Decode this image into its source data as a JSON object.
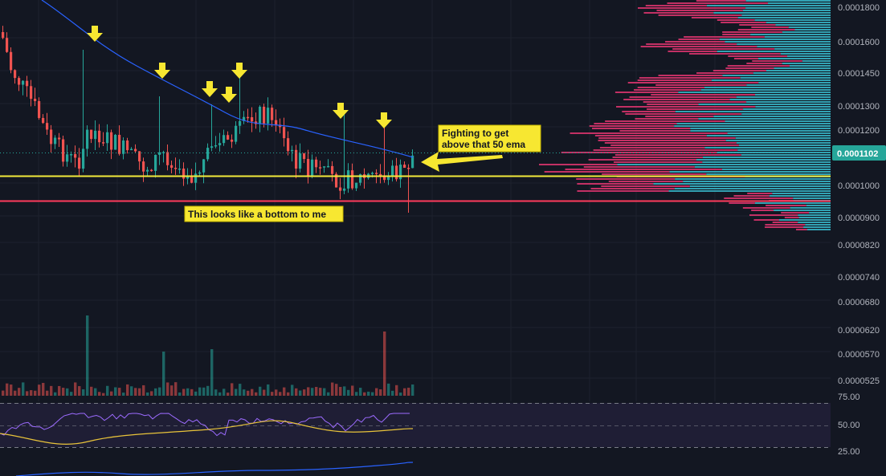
{
  "colors": {
    "background": "#131722",
    "up": "#26a69a",
    "down": "#ef5350",
    "ema": "#2962ff",
    "support": "#f2ea3b",
    "bottom": "#ff3b5c",
    "annotation_fill": "#f7e731",
    "annotation_border": "#c9b800",
    "arrow": "#f7e731",
    "rsi": "#9c6bff",
    "rsi_ma": "#e8c33a",
    "price_badge": "#26a69a",
    "vp_up": "#36b3c4",
    "vp_down": "#d6336c"
  },
  "price_axis": {
    "ticks": [
      "0.0001800",
      "0.0001600",
      "0.0001450",
      "0.0001300",
      "0.0001200",
      "0.0001000",
      "0.0000900",
      "0.0000820",
      "0.0000740",
      "0.0000680",
      "0.0000620",
      "0.0000570",
      "0.0000525"
    ],
    "current_price": "0.0001102",
    "scale": "log"
  },
  "rsi_axis": {
    "ticks": [
      "75.00",
      "50.00",
      "25.00"
    ]
  },
  "annotations": {
    "top_right": {
      "line1": "Fighting to get",
      "line2": "above that 50 ema"
    },
    "bottom": "This looks like a bottom to me"
  },
  "markers": {
    "resistance_arrow_count": 8
  }
}
